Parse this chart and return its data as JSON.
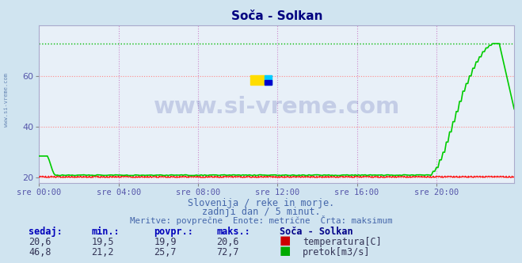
{
  "title": "Soča - Solkan",
  "bg_color": "#d0e4f0",
  "plot_bg_color": "#e8f0f8",
  "title_color": "#000080",
  "grid_color_h": "#ff9999",
  "grid_color_v": "#cc99cc",
  "xlabel_color": "#5555aa",
  "text_color": "#4466aa",
  "x_labels": [
    "sre 00:00",
    "sre 04:00",
    "sre 08:00",
    "sre 12:00",
    "sre 16:00",
    "sre 20:00"
  ],
  "x_ticks": [
    0,
    48,
    96,
    144,
    192,
    240
  ],
  "y_ticks": [
    20,
    40,
    60
  ],
  "ylim": [
    18,
    80
  ],
  "xlim": [
    0,
    287
  ],
  "temp_max_line": 20.6,
  "flow_max_line": 72.7,
  "watermark": "www.si-vreme.com",
  "subtitle1": "Slovenija / reke in morje.",
  "subtitle2": "zadnji dan / 5 minut.",
  "subtitle3": "Meritve: povprečne  Enote: metrične  Črta: maksimum",
  "table_headers": [
    "sedaj:",
    "min.:",
    "povpr.:",
    "maks.:"
  ],
  "table_row1": [
    "20,6",
    "19,5",
    "19,9",
    "20,6"
  ],
  "table_row2": [
    "46,8",
    "21,2",
    "25,7",
    "72,7"
  ],
  "label_temp": "temperatura[C]",
  "label_flow": "pretok[m3/s]",
  "station": "Soča - Solkan"
}
